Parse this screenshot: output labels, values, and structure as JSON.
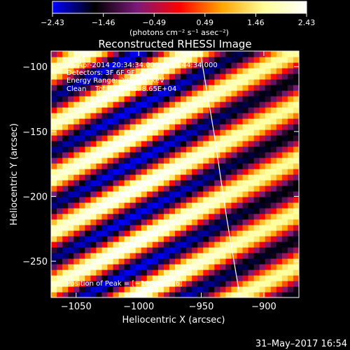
{
  "chart_data": {
    "type": "heatmap",
    "title": "Reconstructed RHESSI Image",
    "xlabel": "Heliocentric X (arcsec)",
    "ylabel": "Heliocentric Y (arcsec)",
    "xlim": [
      -1070,
      -872
    ],
    "ylim": [
      -278,
      -88
    ],
    "x_ticks": [
      -1050,
      -1000,
      -950,
      -900
    ],
    "x_tick_labels": [
      "−1050",
      "−1000",
      "−950",
      "−900"
    ],
    "y_ticks": [
      -100,
      -150,
      -200,
      -250
    ],
    "y_tick_labels": [
      "−100",
      "−150",
      "−200",
      "−250"
    ],
    "colorbar": {
      "range": [
        -2.43,
        2.43
      ],
      "tick_labels": [
        "−2.43",
        "−1.46",
        "−0.49",
        "0.49",
        "1.46",
        "2.43"
      ],
      "unit_label": "(photons cm⁻² s⁻¹ asec⁻²)",
      "colormap": [
        "#0000ff",
        "#000000",
        "#7a1a7a",
        "#ff0000",
        "#ffa500",
        "#ffff99",
        "#ffffff"
      ]
    },
    "annotations": [
      "26-Apr-2014 20:34:34.000 to 20:44:34.000",
      "Detectors: 3F 6F 9F, Att 0",
      "Energy Range: 3.0 - 6.0 keV",
      "Clean    Total counts: 8.65E+04"
    ],
    "peak_label": "Position of Peak = [−1004,−236]",
    "peak_position": [
      -1004,
      -236
    ],
    "fringe_pattern": {
      "stripe_period_perp_arcsec": 37,
      "stripe_slope_y_per_x": 0.5,
      "description_from_pixels": "diagonal bright/dim stripes"
    },
    "limb_curve": {
      "points": [
        [
          -951,
          -88
        ],
        [
          -940,
          -150
        ],
        [
          -930,
          -215
        ],
        [
          -919,
          -278
        ]
      ]
    },
    "grid": false
  },
  "footer": {
    "timestamp": "31–May–2017 16:54"
  }
}
